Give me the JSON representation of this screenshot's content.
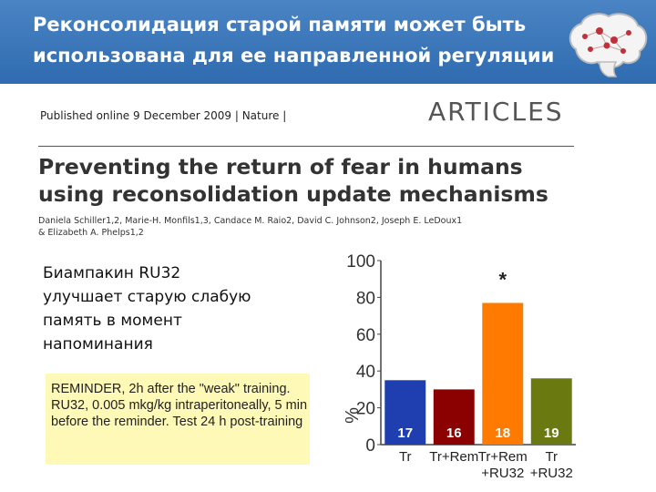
{
  "header": {
    "title_line1": "Реконсолидация старой памяти может быть",
    "title_line2": "использована для ее направленной регуляции"
  },
  "paper": {
    "published": "Published online 9 December 2009 | Nature |",
    "section": "ARTICLES",
    "title_line1": "Preventing the return of fear in humans",
    "title_line2": "using reconsolidation update mechanisms",
    "authors_line1": "Daniela Schiller1,2, Marie-H. Monfils1,3, Candace M. Raio2, David C. Johnson2, Joseph E. LeDoux1",
    "authors_line2": "& Elizabeth A. Phelps1,2"
  },
  "finding": {
    "line1": "Биампакин RU32",
    "line2": "улучшает старую слабую",
    "line3": "память в момент",
    "line4": "напоминания"
  },
  "note": {
    "text": "REMINDER, 2h after the \"weak\" training. RU32, 0.005 mkg/kg intraperitoneally, 5 min before the reminder. Test 24 h post-training"
  },
  "chart_data": {
    "type": "bar",
    "ylabel": "%",
    "ylim": [
      0,
      100
    ],
    "yticks": [
      "0",
      "20",
      "40",
      "60",
      "80",
      "100"
    ],
    "categories": [
      [
        "Tr"
      ],
      [
        "Tr+Rem"
      ],
      [
        "Tr+Rem",
        "+RU32"
      ],
      [
        "Tr",
        "+RU32"
      ]
    ],
    "values": [
      35,
      30,
      77,
      36
    ],
    "bar_labels": [
      "17",
      "16",
      "18",
      "19"
    ],
    "colors": [
      "#1f3fb0",
      "#8b0000",
      "#ff7a00",
      "#6b7a10"
    ],
    "annotation": "*",
    "annotation_bar_index": 2
  }
}
